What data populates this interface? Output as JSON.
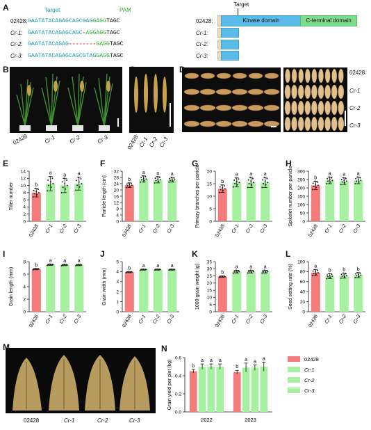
{
  "panel_labels": {
    "A": "A",
    "B": "B",
    "C": "C",
    "D": "D",
    "E": "E",
    "F": "F",
    "G": "G",
    "H": "H",
    "I": "I",
    "J": "J",
    "K": "K",
    "L": "L",
    "M": "M",
    "N": "N"
  },
  "panelA": {
    "target_label": "Target",
    "pam_label": "PAM",
    "rows": [
      {
        "name": "02428:",
        "seg1": "GAATATACAGAGCAGCGAG",
        "seg2": "GAGG",
        "seg3": "TAGC",
        "mut": ""
      },
      {
        "name": "Cr-1:",
        "seg1": "GAATATACAGAGCAGC",
        "mut": "-",
        "seg2": "AGGAGG",
        "seg3": "TAGC"
      },
      {
        "name": "Cr-2:",
        "seg1": "GAATATACAGAG",
        "mut": "--------",
        "seg2": "GAGG",
        "seg3": "TAGC"
      },
      {
        "name": "Cr-3:",
        "seg1": "GAATATACAGAGCAGCGTAG",
        "mut": "",
        "seg2": "GAGG",
        "seg3": "TAGC"
      }
    ],
    "protein_target_label": "Target",
    "protein_rows": [
      "02428:",
      "Cr-1:",
      "Cr-2:",
      "Cr-3:"
    ],
    "kinase_domain": "Kinase domain",
    "cterm_domain": "C-terminal domain"
  },
  "panelB": {
    "genotypes": [
      "02428",
      "Cr-1",
      "Cr-2",
      "Cr-3"
    ]
  },
  "panelC": {
    "genotypes": [
      "02428",
      "Cr-1",
      "Cr-2",
      "Cr-3"
    ]
  },
  "panelD": {
    "genotypes": [
      "02428",
      "Cr-1",
      "Cr-2",
      "Cr-3"
    ]
  },
  "panelM": {
    "genotypes": [
      "02428",
      "Cr-1",
      "Cr-2",
      "Cr-3"
    ]
  },
  "colors": {
    "wt": "#f47b7b",
    "mutant": "#a7f0a1",
    "kinase": "#5bbbe8",
    "cterm": "#7fdc8d",
    "seq_teal": "#1a9bb0",
    "pam_green": "#2fae2f",
    "deletion_red": "#e01b1b"
  },
  "chart_data": [
    {
      "type": "bar",
      "panel": "E",
      "categories": [
        "02428",
        "Cr-1",
        "Cr-2",
        "Cr-3"
      ],
      "values": [
        8,
        10.5,
        10,
        10.5
      ],
      "errors": [
        1.2,
        2,
        2,
        1.8
      ],
      "letters": [
        "b",
        "a",
        "a",
        "a"
      ],
      "ylabel": "Tiller number",
      "ylim": [
        0,
        14
      ],
      "yticks": [
        0,
        2,
        4,
        6,
        8,
        10,
        12,
        14
      ]
    },
    {
      "type": "bar",
      "panel": "F",
      "categories": [
        "02428",
        "Cr-1",
        "Cr-2",
        "Cr-3"
      ],
      "values": [
        23,
        27,
        26.5,
        26.5
      ],
      "errors": [
        1.5,
        2,
        2,
        1.5
      ],
      "letters": [
        "b",
        "a",
        "a",
        "a"
      ],
      "ylabel": "Panicle length (cm)",
      "ylim": [
        0,
        32
      ],
      "yticks": [
        0,
        4,
        8,
        12,
        16,
        20,
        24,
        28,
        32
      ]
    },
    {
      "type": "bar",
      "panel": "G",
      "categories": [
        "02428",
        "Cr-1",
        "Cr-2",
        "Cr-3"
      ],
      "values": [
        13,
        15.5,
        15.5,
        15.5
      ],
      "errors": [
        1.5,
        1.8,
        2,
        2
      ],
      "letters": [
        "b",
        "a",
        "a",
        "a"
      ],
      "ylabel": "Primary branches per panicle",
      "ylim": [
        0,
        20
      ],
      "yticks": [
        0,
        5,
        10,
        15,
        20
      ]
    },
    {
      "type": "bar",
      "panel": "H",
      "categories": [
        "02428",
        "Cr-1",
        "Cr-2",
        "Cr-3"
      ],
      "values": [
        215,
        245,
        240,
        245
      ],
      "errors": [
        25,
        20,
        20,
        20
      ],
      "letters": [
        "b",
        "a",
        "a",
        "a"
      ],
      "ylabel": "Spikelet number per panicle",
      "ylim": [
        0,
        300
      ],
      "yticks": [
        0,
        50,
        100,
        150,
        200,
        250,
        300
      ]
    },
    {
      "type": "bar",
      "panel": "I",
      "categories": [
        "02428",
        "Cr-1",
        "Cr-2",
        "Cr-3"
      ],
      "values": [
        6.8,
        7.5,
        7.45,
        7.45
      ],
      "errors": [
        0.1,
        0.1,
        0.1,
        0.1
      ],
      "letters": [
        "b",
        "a",
        "a",
        "a"
      ],
      "ylabel": "Grain length (mm)",
      "ylim": [
        0,
        8
      ],
      "yticks": [
        0,
        2,
        4,
        6,
        8
      ]
    },
    {
      "type": "bar",
      "panel": "J",
      "categories": [
        "02428",
        "Cr-1",
        "Cr-2",
        "Cr-3"
      ],
      "values": [
        3.95,
        4.2,
        4.2,
        4.2
      ],
      "errors": [
        0.05,
        0.05,
        0.05,
        0.05
      ],
      "letters": [
        "b",
        "a",
        "a",
        "a"
      ],
      "ylabel": "Grain width (mm)",
      "ylim": [
        0,
        5
      ],
      "yticks": [
        0,
        1,
        2,
        3,
        4,
        5
      ]
    },
    {
      "type": "bar",
      "panel": "K",
      "categories": [
        "02428",
        "Cr-1",
        "Cr-2",
        "Cr-3"
      ],
      "values": [
        24.5,
        28,
        28,
        28
      ],
      "errors": [
        0.5,
        1,
        1,
        1
      ],
      "letters": [
        "b",
        "a",
        "a",
        "a"
      ],
      "ylabel": "1000-grain weight (g)",
      "ylim": [
        0,
        35
      ],
      "yticks": [
        0,
        5,
        10,
        15,
        20,
        25,
        30,
        35
      ]
    },
    {
      "type": "bar",
      "panel": "L",
      "categories": [
        "02428",
        "Cr-1",
        "Cr-2",
        "Cr-3"
      ],
      "values": [
        78,
        71,
        72,
        73
      ],
      "errors": [
        6,
        5,
        5,
        5
      ],
      "letters": [
        "a",
        "b",
        "b",
        "b"
      ],
      "ylabel": "Seed setting rate (%)",
      "ylim": [
        0,
        100
      ],
      "yticks": [
        0,
        20,
        40,
        60,
        80,
        100
      ]
    },
    {
      "type": "bar",
      "panel": "N",
      "categories": [
        "2022",
        "2023"
      ],
      "series": [
        {
          "name": "02428",
          "values": [
            0.45,
            0.44
          ],
          "errors": [
            0.02,
            0.02
          ],
          "letters": [
            "b",
            "b"
          ]
        },
        {
          "name": "Cr-1",
          "values": [
            0.5,
            0.49
          ],
          "errors": [
            0.03,
            0.05
          ],
          "letters": [
            "a",
            "a"
          ]
        },
        {
          "name": "Cr-2",
          "values": [
            0.5,
            0.49
          ],
          "errors": [
            0.03,
            0.03
          ],
          "letters": [
            "a",
            "a"
          ]
        },
        {
          "name": "Cr-3",
          "values": [
            0.5,
            0.5
          ],
          "errors": [
            0.03,
            0.05
          ],
          "letters": [
            "a",
            "a"
          ]
        }
      ],
      "ylabel": "Grain yield per plot (kg)",
      "ylim": [
        0,
        0.6
      ],
      "yticks": [
        0.0,
        0.2,
        0.4,
        0.6
      ]
    }
  ]
}
